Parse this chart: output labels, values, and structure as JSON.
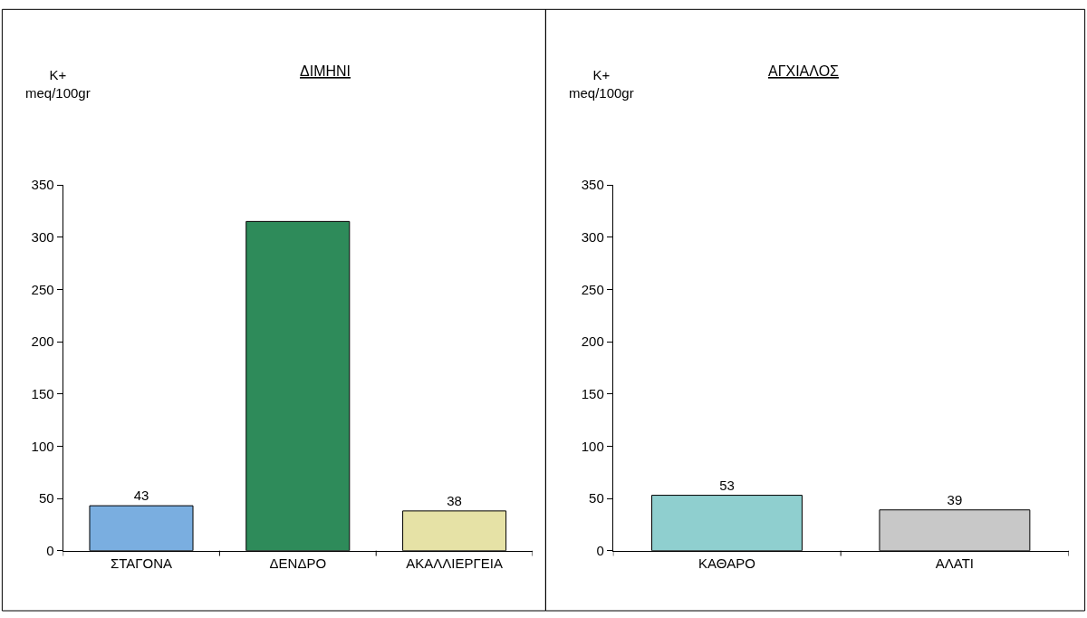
{
  "chart_data": [
    {
      "type": "bar",
      "title": "ΔΙΜΗΝΙ",
      "ylabel": "K+\nmeq/100gr",
      "categories": [
        "ΣΤΑΓΟΝΑ",
        "ΔΕΝΔΡΟ",
        "ΑΚΑΛΛΙΕΡΓΕΙΑ"
      ],
      "values": [
        43,
        315,
        38
      ],
      "value_labels": [
        "43",
        null,
        "38"
      ],
      "colors": [
        "#7aaee0",
        "#2e8b5a",
        "#e6e2a6"
      ],
      "ylim": [
        0,
        350
      ],
      "yticks": [
        0,
        50,
        100,
        150,
        200,
        250,
        300,
        350
      ]
    },
    {
      "type": "bar",
      "title": "ΑΓΧΙΑΛΟΣ",
      "ylabel": "K+\nmeq/100gr",
      "categories": [
        "ΚΑΘΑΡΟ",
        "ΑΛΑΤΙ"
      ],
      "values": [
        53,
        39
      ],
      "value_labels": [
        "53",
        "39"
      ],
      "colors": [
        "#8fcfcf",
        "#c8c8c8"
      ],
      "ylim": [
        0,
        350
      ],
      "yticks": [
        0,
        50,
        100,
        150,
        200,
        250,
        300,
        350
      ]
    }
  ]
}
